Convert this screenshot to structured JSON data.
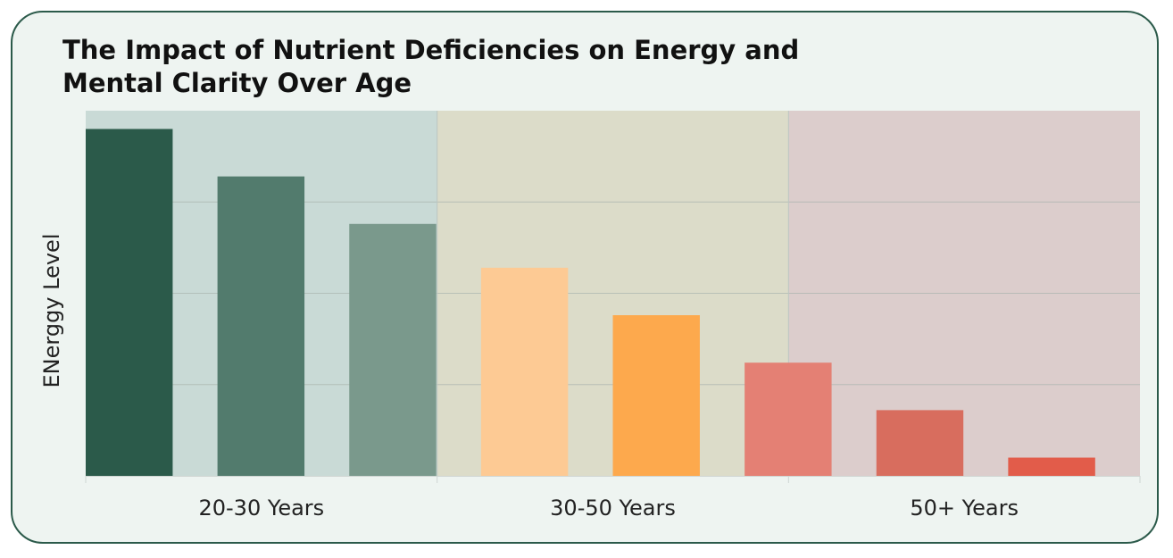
{
  "chart_data": {
    "type": "bar",
    "title": "The Impact of Nutrient Deficiencies on Energy and Mental Clarity Over Age",
    "ylabel": "ENerggy Level",
    "xlabel": "",
    "categories": [
      "20-30 Years",
      "30-50 Years",
      "50+ Years"
    ],
    "ylim": [
      0,
      100
    ],
    "grid": true,
    "legend": "none",
    "band_colors": [
      "#c9dad6",
      "#dcdcc9",
      "#dccdcc"
    ],
    "bars": [
      {
        "group": 0,
        "value": 95,
        "color": "#2b5a4a"
      },
      {
        "group": 0,
        "value": 82,
        "color": "#527b6d"
      },
      {
        "group": 0,
        "value": 69,
        "color": "#7a998c"
      },
      {
        "group": 1,
        "value": 57,
        "color": "#fdca94"
      },
      {
        "group": 1,
        "value": 44,
        "color": "#fda94d"
      },
      {
        "group": 1,
        "value": 31,
        "color": "#e48074"
      },
      {
        "group": 2,
        "value": 18,
        "color": "#d86d5e"
      },
      {
        "group": 2,
        "value": 5,
        "color": "#e25c4a"
      }
    ]
  }
}
